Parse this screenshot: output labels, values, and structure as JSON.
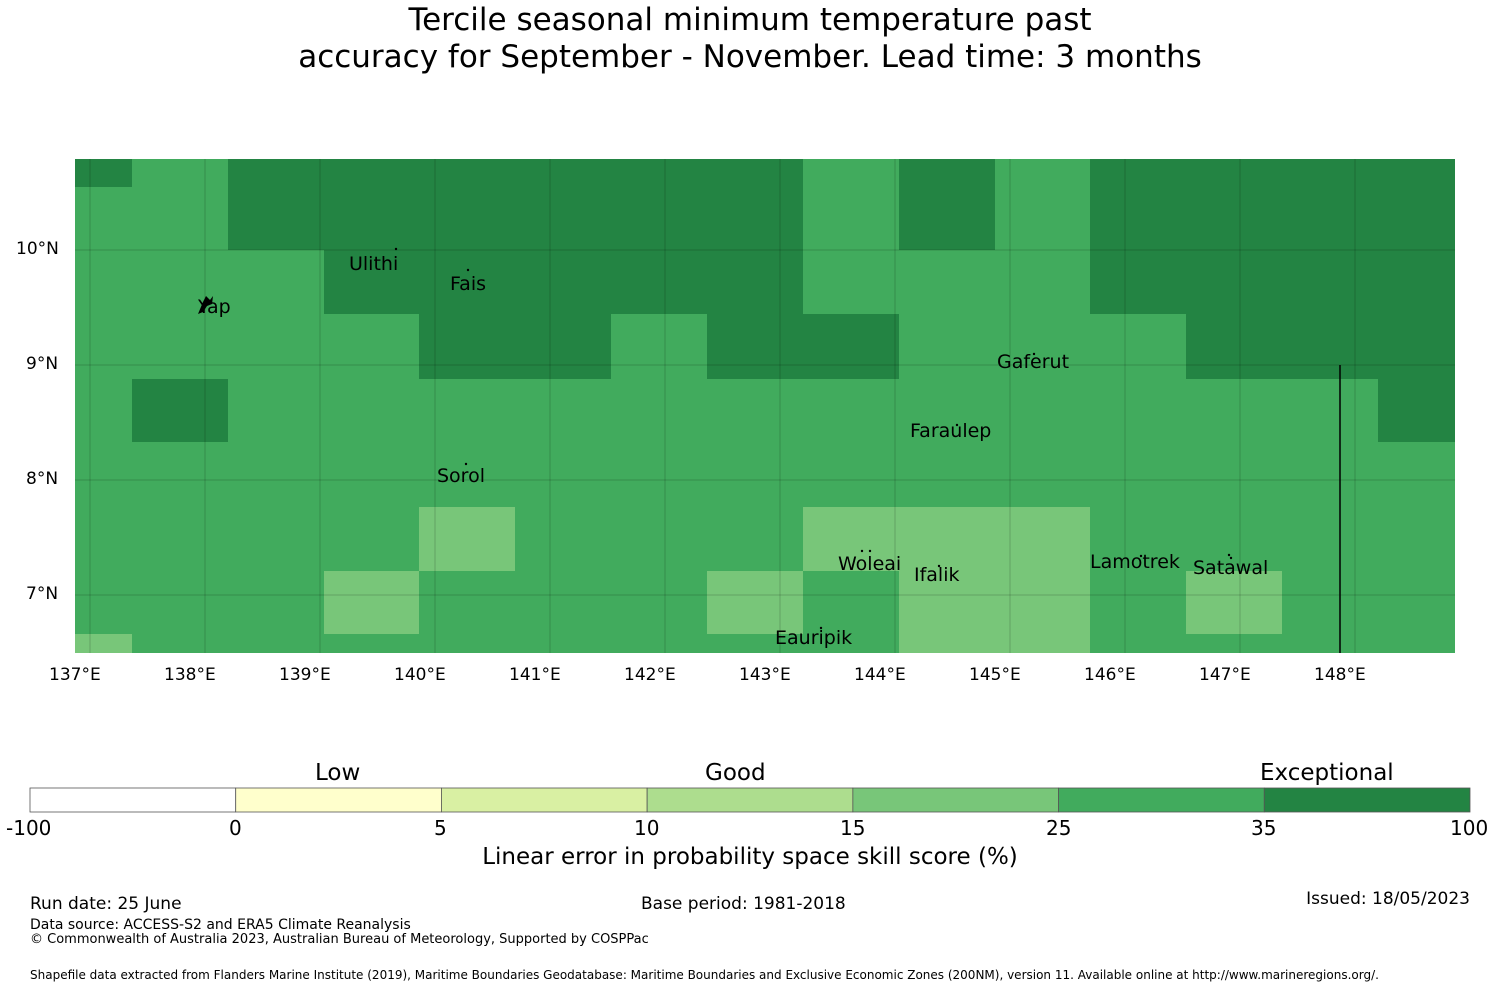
{
  "title": {
    "line1": "Tercile seasonal minimum temperature past",
    "line2": "accuracy for September - November. Lead time: 3 months"
  },
  "map": {
    "lon_labels": [
      "137°E",
      "138°E",
      "139°E",
      "140°E",
      "141°E",
      "142°E",
      "143°E",
      "144°E",
      "145°E",
      "146°E",
      "147°E",
      "148°E"
    ],
    "lat_labels": [
      "10°N",
      "9°N",
      "8°N",
      "7°N"
    ],
    "places": [
      {
        "name": "Ulithi"
      },
      {
        "name": "Fais"
      },
      {
        "name": "Yap"
      },
      {
        "name": "Gaferut"
      },
      {
        "name": "Faraulep"
      },
      {
        "name": "Sorol"
      },
      {
        "name": "Woleai"
      },
      {
        "name": "Ifalik"
      },
      {
        "name": "Lamotrek"
      },
      {
        "name": "Satawal"
      },
      {
        "name": "Eauripik"
      }
    ],
    "category_colors": {
      "exceptional": "#238443",
      "good_high": "#41ab5d",
      "good_mid": "#78c679"
    }
  },
  "colorbar": {
    "words": {
      "low": "Low",
      "good": "Good",
      "exceptional": "Exceptional"
    },
    "ticks": [
      "-100",
      "0",
      "5",
      "10",
      "15",
      "25",
      "35",
      "100"
    ],
    "colors": [
      "#ffffff",
      "#ffffcc",
      "#d9f0a3",
      "#addd8e",
      "#78c679",
      "#41ab5d",
      "#238443"
    ],
    "label": "Linear error in probability space skill score (%)"
  },
  "footer": {
    "run_date": "Run date: 25 June",
    "base_period": "Base period: 1981-2018",
    "issued": "Issued: 18/05/2023",
    "data_source": "Data source: ACCESS-S2 and ERA5 Climate Reanalysis",
    "copyright": "© Commonwealth of Australia 2023, Australian Bureau of Meteorology, Supported by COSPPac",
    "shapefile": "Shapefile data extracted from Flanders Marine Institute (2019), Maritime Boundaries Geodatabase: Maritime Boundaries and Exclusive Economic Zones (200NM), version 11. Available online at http://www.marineregions.org/."
  }
}
